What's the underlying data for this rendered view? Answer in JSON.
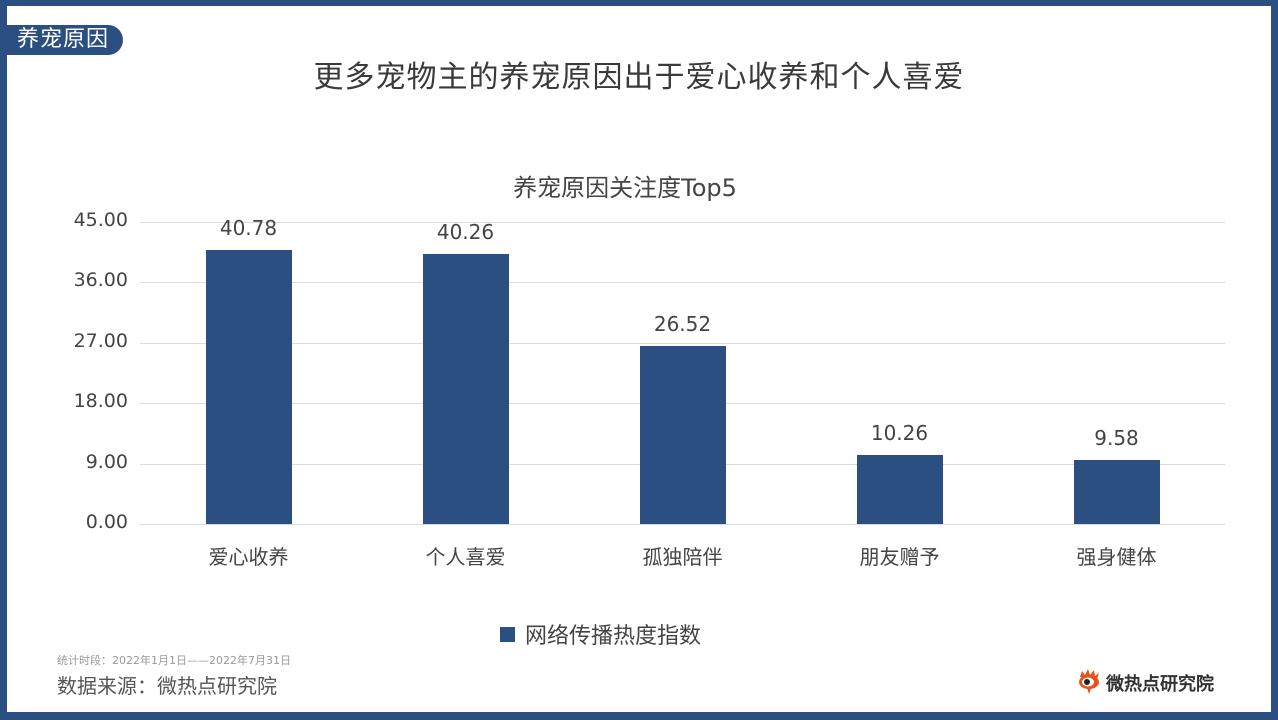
{
  "section_tag": "养宠原因",
  "headline": "更多宠物主的养宠原因出于爱心收养和个人喜爱",
  "footer": {
    "period": "统计时段：2022年1月1日——2022年7月31日",
    "source": "数据来源：微热点研究院",
    "logo_text": "微热点研究院",
    "logo_icon": "weibo-eye-icon"
  },
  "colors": {
    "brand": "#2b4f80",
    "bar": "#2b4f80",
    "grid": "#dcdcdc"
  },
  "chart_data": {
    "type": "bar",
    "title": "养宠原因关注度Top5",
    "xlabel": "",
    "ylabel": "",
    "categories": [
      "爱心收养",
      "个人喜爱",
      "孤独陪伴",
      "朋友赠予",
      "强身健体"
    ],
    "series": [
      {
        "name": "网络传播热度指数",
        "values": [
          40.78,
          40.26,
          26.52,
          10.26,
          9.58
        ]
      }
    ],
    "value_labels": [
      "40.78",
      "40.26",
      "26.52",
      "10.26",
      "9.58"
    ],
    "ylim": [
      0,
      45
    ],
    "yticks": [
      "0.00",
      "9.00",
      "18.00",
      "27.00",
      "36.00",
      "45.00"
    ],
    "grid": true,
    "legend_position": "bottom"
  }
}
